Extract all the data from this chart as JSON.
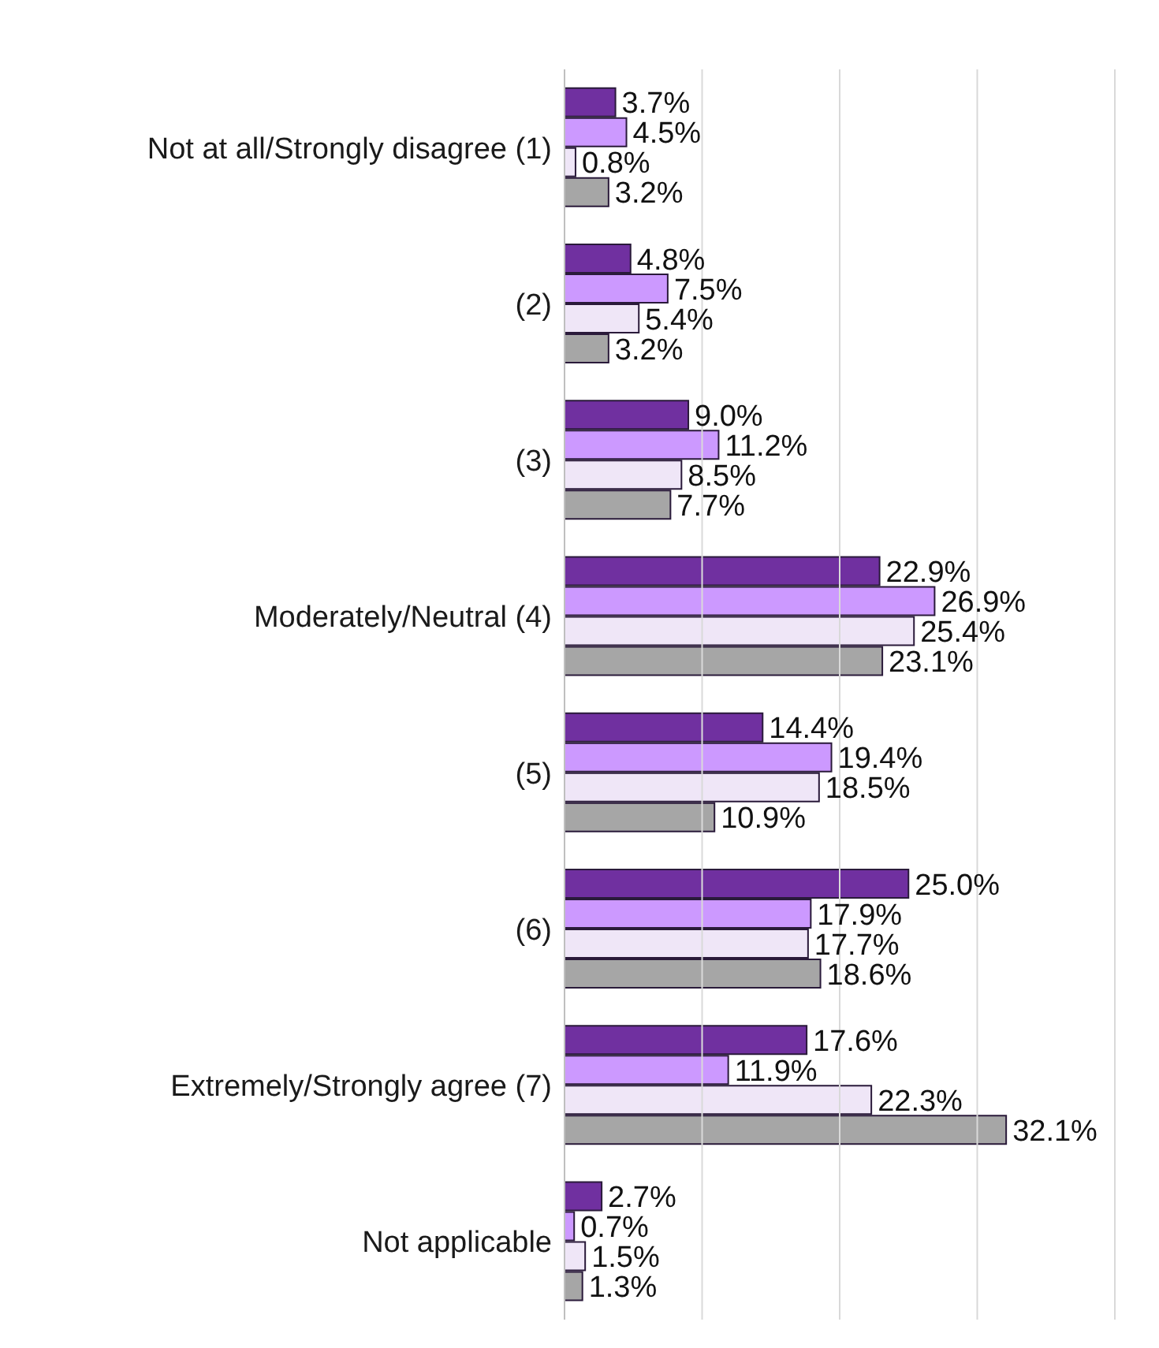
{
  "chart_data": {
    "type": "bar",
    "orientation": "horizontal",
    "categories": [
      "Not at all/Strongly disagree (1)",
      "(2)",
      "(3)",
      "Moderately/Neutral (4)",
      "(5)",
      "(6)",
      "Extremely/Strongly agree (7)",
      "Not applicable"
    ],
    "series": [
      {
        "color": "#7030a0",
        "values": [
          3.7,
          4.8,
          9.0,
          22.9,
          14.4,
          25.0,
          17.6,
          2.7
        ],
        "value_labels": [
          "3.7%",
          "4.8%",
          "9.0%",
          "22.9%",
          "14.4%",
          "25.0%",
          "17.6%",
          "2.7%"
        ]
      },
      {
        "color": "#cc99ff",
        "values": [
          4.5,
          7.5,
          11.2,
          26.9,
          19.4,
          17.9,
          11.9,
          0.7
        ],
        "value_labels": [
          "4.5%",
          "7.5%",
          "11.2%",
          "26.9%",
          "19.4%",
          "17.9%",
          "11.9%",
          "0.7%"
        ]
      },
      {
        "color": "#efe6f7",
        "values": [
          0.8,
          5.4,
          8.5,
          25.4,
          18.5,
          17.7,
          22.3,
          1.5
        ],
        "value_labels": [
          "0.8%",
          "5.4%",
          "8.5%",
          "25.4%",
          "18.5%",
          "17.7%",
          "22.3%",
          "1.5%"
        ]
      },
      {
        "color": "#a6a6a6",
        "values": [
          3.2,
          3.2,
          7.7,
          23.1,
          10.9,
          18.6,
          32.1,
          1.3
        ],
        "value_labels": [
          "3.2%",
          "3.2%",
          "7.7%",
          "23.1%",
          "10.9%",
          "18.6%",
          "32.1%",
          "1.3%"
        ]
      }
    ],
    "xlim": [
      0,
      40
    ],
    "xticks": [
      {
        "value": 0,
        "label": null
      },
      {
        "value": 10,
        "label": null
      },
      {
        "value": 20,
        "label": null
      },
      {
        "value": 30,
        "label": null
      },
      {
        "value": 40,
        "label": null
      }
    ],
    "grid": "x",
    "legend": false,
    "tick_labels": "y"
  }
}
